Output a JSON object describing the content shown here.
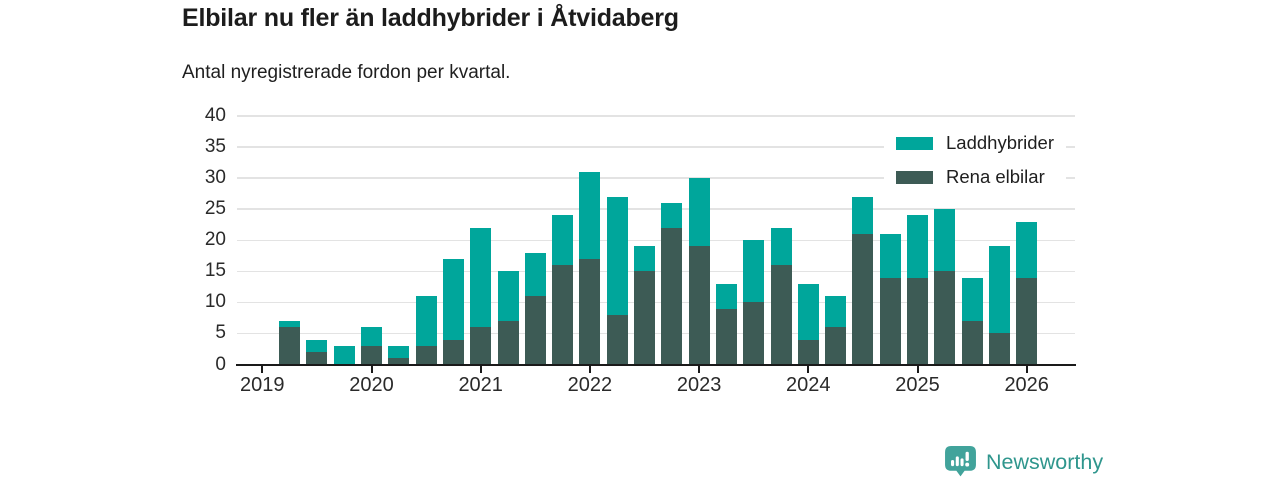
{
  "header": {
    "title": "Elbilar nu fler än laddhybrider i Åtvidaberg",
    "subtitle": "Antal nyregistrerade fordon per kvartal."
  },
  "colors": {
    "laddhybrider": "#00a69b",
    "rena_elbilar": "#3d5b55",
    "axis": "#1a1a1a",
    "grid": "#e3e3e3",
    "brand_icon": "#41a39b",
    "brand_text": "#2f968d"
  },
  "chart_data": {
    "type": "bar",
    "stacked": true,
    "title": "Elbilar nu fler än laddhybrider i Åtvidaberg",
    "subtitle": "Antal nyregistrerade fordon per kvartal.",
    "xlabel": "",
    "ylabel": "",
    "ylim": [
      0,
      40
    ],
    "yticks": [
      0,
      5,
      10,
      15,
      20,
      25,
      30,
      35,
      40
    ],
    "grid": true,
    "legend_position": "top-right",
    "categories": [
      "2019 Q2",
      "2019 Q3",
      "2019 Q4",
      "2020 Q1",
      "2020 Q2",
      "2020 Q3",
      "2020 Q4",
      "2021 Q1",
      "2021 Q2",
      "2021 Q3",
      "2021 Q4",
      "2022 Q1",
      "2022 Q2",
      "2022 Q3",
      "2022 Q4",
      "2023 Q1",
      "2023 Q2",
      "2023 Q3",
      "2023 Q4",
      "2024 Q1",
      "2024 Q2",
      "2024 Q3",
      "2024 Q4",
      "2025 Q1",
      "2025 Q2",
      "2025 Q3",
      "2025 Q4",
      "2026 Q1"
    ],
    "start_quarter_index": 1,
    "series": [
      {
        "name": "Laddhybrider",
        "color": "#00a69b",
        "values": [
          1,
          2,
          3,
          3,
          2,
          8,
          13,
          16,
          8,
          7,
          8,
          14,
          19,
          4,
          4,
          11,
          4,
          10,
          6,
          9,
          5,
          6,
          7,
          10,
          10,
          7,
          14,
          9
        ]
      },
      {
        "name": "Rena elbilar",
        "color": "#3d5b55",
        "values": [
          6,
          2,
          0,
          3,
          1,
          3,
          4,
          6,
          7,
          11,
          16,
          17,
          8,
          15,
          22,
          19,
          9,
          10,
          16,
          4,
          6,
          21,
          14,
          14,
          15,
          7,
          5,
          14
        ]
      }
    ],
    "totals": [
      7,
      4,
      3,
      6,
      3,
      11,
      17,
      22,
      15,
      18,
      24,
      31,
      27,
      19,
      26,
      30,
      13,
      20,
      22,
      13,
      11,
      27,
      21,
      24,
      25,
      14,
      19,
      23
    ],
    "xticks": [
      {
        "label": "2019",
        "quarter_index": 0
      },
      {
        "label": "2020",
        "quarter_index": 4
      },
      {
        "label": "2021",
        "quarter_index": 8
      },
      {
        "label": "2022",
        "quarter_index": 12
      },
      {
        "label": "2023",
        "quarter_index": 16
      },
      {
        "label": "2024",
        "quarter_index": 20
      },
      {
        "label": "2025",
        "quarter_index": 24
      },
      {
        "label": "2026",
        "quarter_index": 28
      }
    ]
  },
  "legend": {
    "items": [
      {
        "label": "Laddhybrider",
        "color": "#00a69b"
      },
      {
        "label": "Rena elbilar",
        "color": "#3d5b55"
      }
    ]
  },
  "footer": {
    "brand": "Newsworthy"
  }
}
